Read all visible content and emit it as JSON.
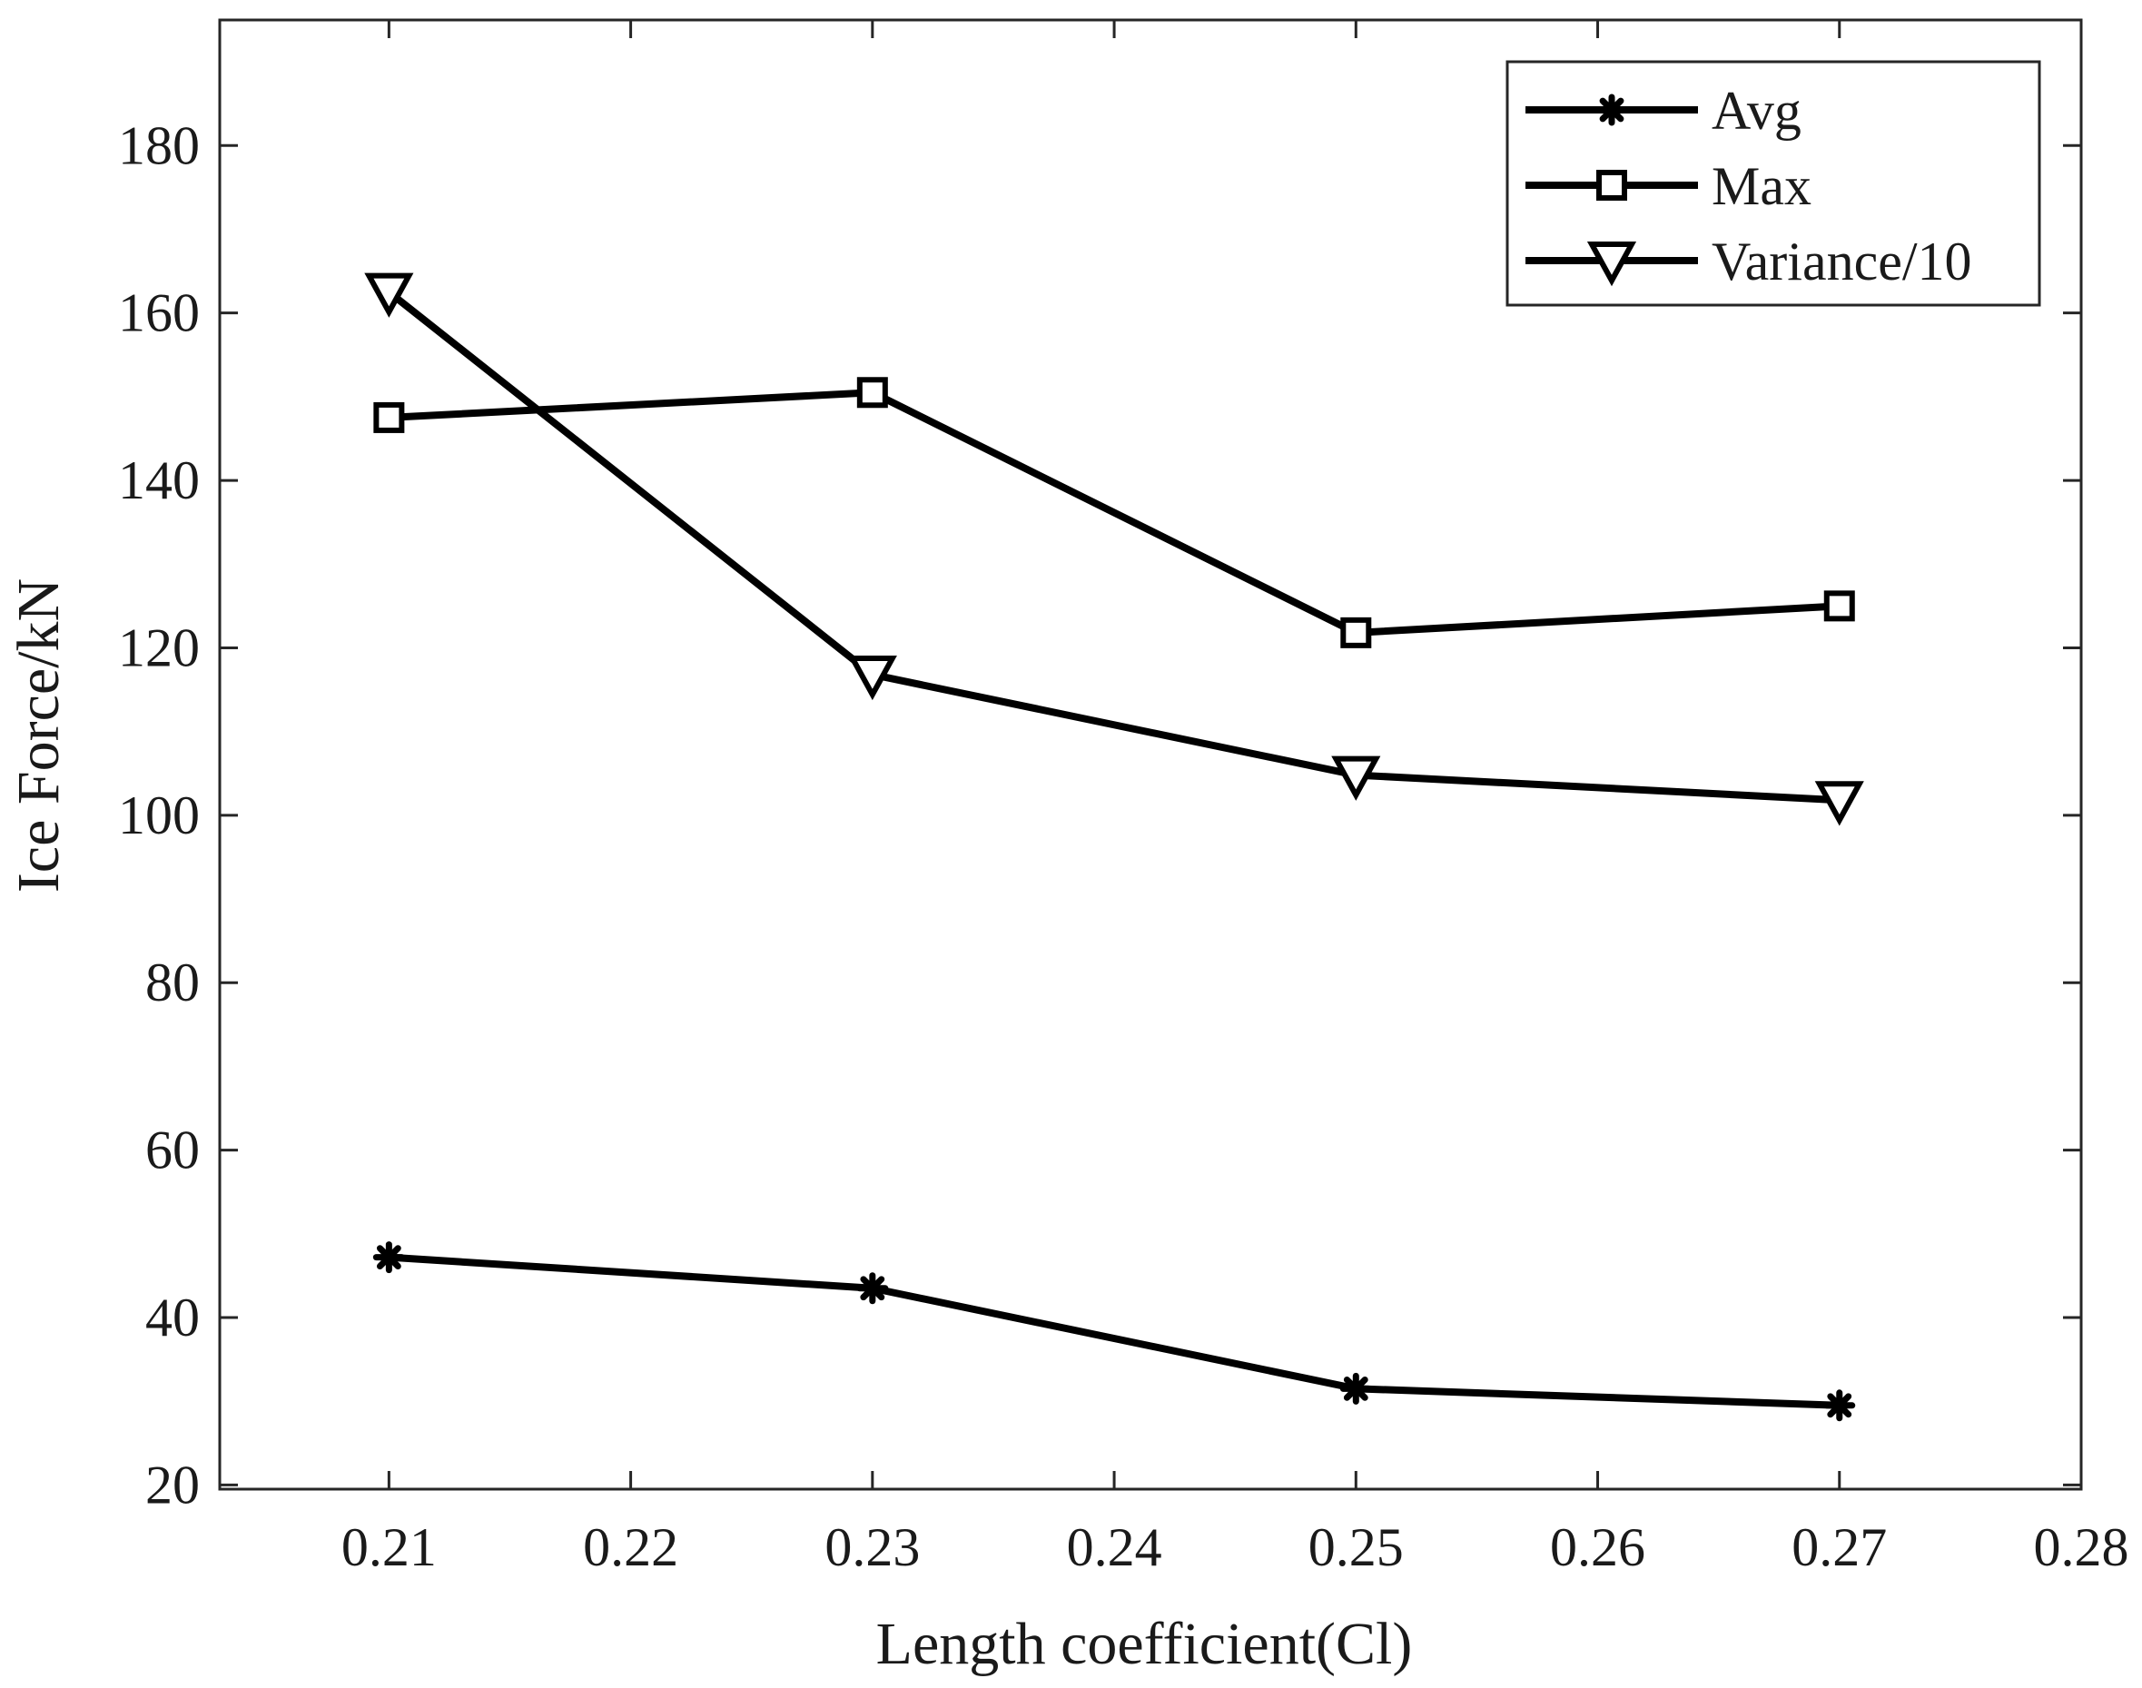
{
  "chart_data": {
    "type": "line",
    "title": "",
    "xlabel": "Length coefficient(Cl)",
    "ylabel": "Ice  Force/kN",
    "xlim": [
      0.203,
      0.28
    ],
    "ylim": [
      19.5,
      195
    ],
    "xticks": [
      0.21,
      0.22,
      0.23,
      0.24,
      0.25,
      0.26,
      0.27,
      0.28
    ],
    "xtick_labels": [
      "0.21",
      "0.22",
      "0.23",
      "0.24",
      "0.25",
      "0.26",
      "0.27",
      "0.28"
    ],
    "yticks": [
      20,
      40,
      60,
      80,
      100,
      120,
      140,
      160,
      180
    ],
    "ytick_labels": [
      "20",
      "40",
      "60",
      "80",
      "100",
      "120",
      "140",
      "160",
      "180"
    ],
    "grid": false,
    "box": true,
    "legend_position": "top-right",
    "x": [
      0.21,
      0.23,
      0.25,
      0.27
    ],
    "series": [
      {
        "name": "Avg",
        "marker": "asterisk",
        "color": "#000000",
        "values": [
          47.2,
          43.5,
          31.5,
          29.5
        ]
      },
      {
        "name": "Max",
        "marker": "square",
        "color": "#000000",
        "values": [
          147.5,
          150.5,
          121.8,
          125.0
        ]
      },
      {
        "name": "Variance/10",
        "marker": "triangle-down",
        "color": "#000000",
        "values": [
          162.5,
          116.8,
          104.8,
          101.8
        ]
      }
    ]
  }
}
